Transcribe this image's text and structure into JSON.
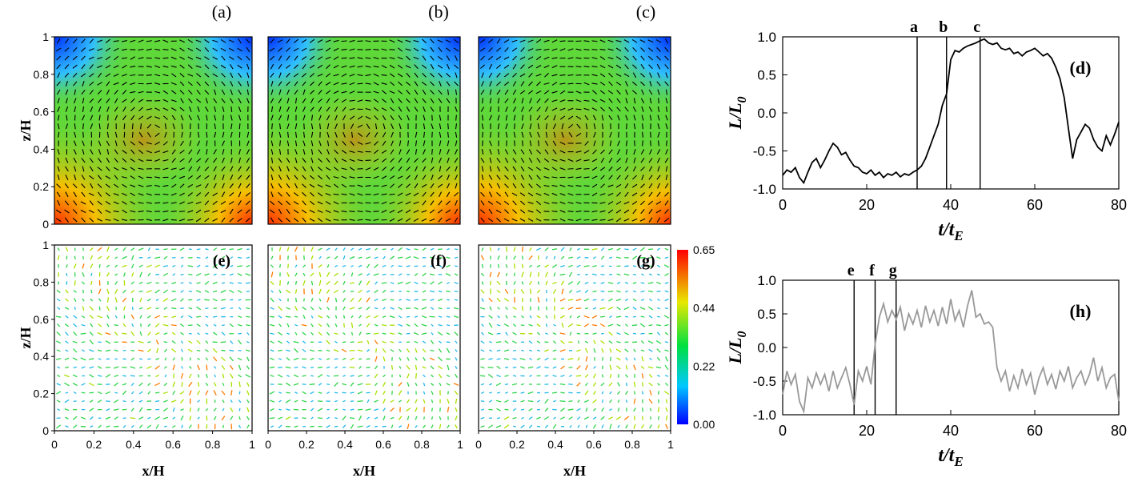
{
  "chart_data": [
    {
      "type": "heatmap",
      "panel": "(a)",
      "xlim": [
        0,
        1
      ],
      "ylim": [
        0,
        1
      ],
      "ylabel": "z/H",
      "yticks": [
        "0",
        "0.2",
        "0.4",
        "0.6",
        "0.8",
        "1"
      ]
    },
    {
      "type": "heatmap",
      "panel": "(b)",
      "xlim": [
        0,
        1
      ],
      "ylim": [
        0,
        1
      ]
    },
    {
      "type": "heatmap",
      "panel": "(c)",
      "xlim": [
        0,
        1
      ],
      "ylim": [
        0,
        1
      ]
    },
    {
      "type": "heatmap",
      "panel": "(e)",
      "xlim": [
        0,
        1
      ],
      "ylim": [
        0,
        1
      ],
      "xlabel": "x/H",
      "ylabel": "z/H",
      "xticks": [
        "0",
        "0.2",
        "0.4",
        "0.6",
        "0.8",
        "1"
      ],
      "yticks": [
        "0",
        "0.2",
        "0.4",
        "0.6",
        "0.8",
        "1"
      ]
    },
    {
      "type": "heatmap",
      "panel": "(f)",
      "xlim": [
        0,
        1
      ],
      "ylim": [
        0,
        1
      ],
      "xlabel": "x/H",
      "xticks": [
        "0",
        "0.2",
        "0.4",
        "0.6",
        "0.8",
        "1"
      ]
    },
    {
      "type": "heatmap",
      "panel": "(g)",
      "xlim": [
        0,
        1
      ],
      "ylim": [
        0,
        1
      ],
      "xlabel": "x/H",
      "xticks": [
        "0",
        "0.2",
        "0.4",
        "0.6",
        "0.8",
        "1"
      ],
      "colorbar": {
        "ticks": [
          "0.65",
          "0.44",
          "0.22",
          "0.00"
        ],
        "range": [
          0,
          0.65
        ]
      }
    },
    {
      "type": "line",
      "panel": "(d)",
      "xlabel": "t/t",
      "xlabel_sub": "E",
      "ylabel": "L/L",
      "ylabel_sub": "0",
      "xlim": [
        0,
        80
      ],
      "ylim": [
        -1,
        1
      ],
      "xticks": [
        "0",
        "20",
        "40",
        "60",
        "80"
      ],
      "yticks": [
        "1.0",
        "0.5",
        "0.0",
        "-0.5",
        "-1.0"
      ],
      "markers": [
        {
          "label": "a",
          "x": 32
        },
        {
          "label": "b",
          "x": 39
        },
        {
          "label": "c",
          "x": 47
        }
      ],
      "series": [
        {
          "color": "#000000",
          "x": [
            0,
            1,
            2,
            3,
            4,
            5,
            6,
            7,
            8,
            9,
            10,
            11,
            12,
            13,
            14,
            15,
            16,
            17,
            18,
            19,
            20,
            21,
            22,
            23,
            24,
            25,
            26,
            27,
            28,
            29,
            30,
            31,
            32,
            33,
            34,
            35,
            36,
            37,
            38,
            39,
            40,
            41,
            42,
            43,
            44,
            45,
            46,
            47,
            48,
            49,
            50,
            51,
            52,
            53,
            54,
            55,
            56,
            57,
            58,
            59,
            60,
            61,
            62,
            63,
            64,
            65,
            66,
            67,
            68,
            69,
            70,
            71,
            72,
            73,
            74,
            75,
            76,
            77,
            78,
            79,
            80
          ],
          "y": [
            -0.82,
            -0.75,
            -0.78,
            -0.72,
            -0.85,
            -0.92,
            -0.78,
            -0.65,
            -0.6,
            -0.72,
            -0.62,
            -0.5,
            -0.4,
            -0.45,
            -0.55,
            -0.52,
            -0.62,
            -0.7,
            -0.72,
            -0.78,
            -0.8,
            -0.75,
            -0.82,
            -0.78,
            -0.85,
            -0.8,
            -0.82,
            -0.78,
            -0.84,
            -0.8,
            -0.82,
            -0.78,
            -0.75,
            -0.7,
            -0.6,
            -0.45,
            -0.3,
            -0.15,
            0.1,
            0.25,
            0.7,
            0.82,
            0.8,
            0.85,
            0.88,
            0.9,
            0.92,
            0.95,
            0.97,
            0.92,
            0.9,
            0.92,
            0.85,
            0.83,
            0.85,
            0.78,
            0.8,
            0.75,
            0.8,
            0.82,
            0.85,
            0.8,
            0.75,
            0.78,
            0.72,
            0.6,
            0.45,
            0.2,
            -0.2,
            -0.6,
            -0.35,
            -0.25,
            -0.15,
            -0.2,
            -0.35,
            -0.45,
            -0.5,
            -0.3,
            -0.42,
            -0.28,
            -0.12
          ]
        }
      ]
    },
    {
      "type": "line",
      "panel": "(h)",
      "xlabel": "t/t",
      "xlabel_sub": "E",
      "ylabel": "L/L",
      "ylabel_sub": "0",
      "xlim": [
        0,
        80
      ],
      "ylim": [
        -1,
        1
      ],
      "xticks": [
        "0",
        "20",
        "40",
        "60",
        "80"
      ],
      "yticks": [
        "1.0",
        "0.5",
        "0.0",
        "-0.5",
        "-1.0"
      ],
      "markers": [
        {
          "label": "e",
          "x": 17
        },
        {
          "label": "f",
          "x": 22
        },
        {
          "label": "g",
          "x": 27
        }
      ],
      "series": [
        {
          "color": "#999999",
          "x": [
            0,
            1,
            2,
            3,
            4,
            5,
            6,
            7,
            8,
            9,
            10,
            11,
            12,
            13,
            14,
            15,
            16,
            17,
            18,
            19,
            20,
            21,
            22,
            23,
            24,
            25,
            26,
            27,
            28,
            29,
            30,
            31,
            32,
            33,
            34,
            35,
            36,
            37,
            38,
            39,
            40,
            41,
            42,
            43,
            44,
            45,
            46,
            47,
            48,
            49,
            50,
            51,
            52,
            53,
            54,
            55,
            56,
            57,
            58,
            59,
            60,
            61,
            62,
            63,
            64,
            65,
            66,
            67,
            68,
            69,
            70,
            71,
            72,
            73,
            74,
            75,
            76,
            77,
            78,
            79,
            80
          ],
          "y": [
            -0.7,
            -0.35,
            -0.55,
            -0.4,
            -0.8,
            -0.95,
            -0.45,
            -0.6,
            -0.38,
            -0.55,
            -0.4,
            -0.65,
            -0.35,
            -0.6,
            -0.45,
            -0.3,
            -0.55,
            -0.85,
            -0.35,
            -0.5,
            -0.28,
            -0.55,
            0.05,
            0.45,
            0.65,
            0.38,
            0.55,
            0.42,
            0.6,
            0.25,
            0.5,
            0.35,
            0.55,
            0.3,
            0.62,
            0.38,
            0.55,
            0.32,
            0.6,
            0.35,
            0.72,
            0.4,
            0.55,
            0.3,
            0.62,
            0.85,
            0.45,
            0.5,
            0.35,
            0.38,
            0.3,
            -0.3,
            -0.5,
            -0.35,
            -0.65,
            -0.42,
            -0.6,
            -0.32,
            -0.55,
            -0.38,
            -0.7,
            -0.45,
            -0.3,
            -0.55,
            -0.4,
            -0.62,
            -0.35,
            -0.5,
            -0.28,
            -0.6,
            -0.45,
            -0.35,
            -0.55,
            -0.4,
            -0.15,
            -0.5,
            -0.3,
            -0.6,
            -0.45,
            -0.4,
            -0.8
          ]
        }
      ]
    }
  ]
}
